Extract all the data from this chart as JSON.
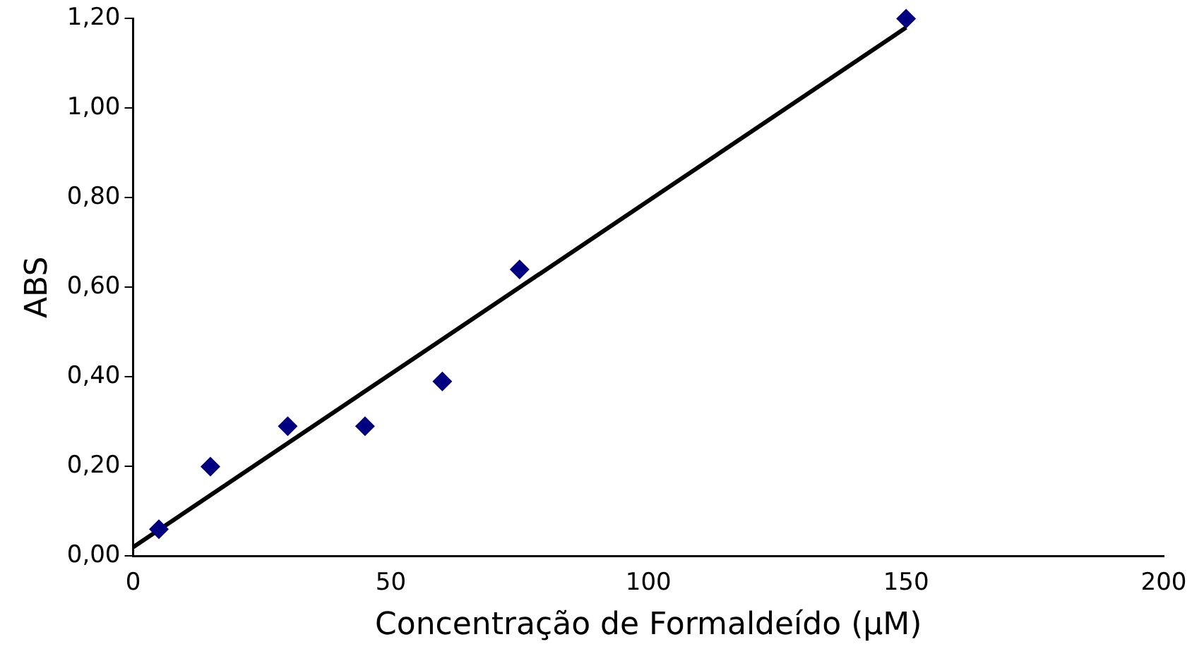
{
  "chart_data": {
    "type": "scatter",
    "xlabel": "Concentração de Formaldeído (µM)",
    "ylabel": "ABS",
    "x": [
      5,
      15,
      30,
      45,
      60,
      75,
      150
    ],
    "series": [
      {
        "type": "scatter",
        "color": "#000080",
        "marker": "diamond",
        "values": [
          0.06,
          0.2,
          0.29,
          0.29,
          0.39,
          0.64,
          1.2
        ]
      },
      {
        "type": "line",
        "color": "#000000",
        "marker": "none",
        "x": [
          0,
          150
        ],
        "values": [
          0.02,
          1.18
        ]
      }
    ],
    "xlim": [
      0,
      200
    ],
    "xticks": [
      0,
      50,
      100,
      150,
      200
    ],
    "ylim": [
      0,
      1.2
    ],
    "yticks": [
      {
        "value": 0,
        "label": "0,00"
      },
      {
        "value": 0.2,
        "label": "0,20"
      },
      {
        "value": 0.4,
        "label": "0,40"
      },
      {
        "value": 0.6,
        "label": "0,60"
      },
      {
        "value": 0.8,
        "label": "0,80"
      },
      {
        "value": 1,
        "label": "1,00"
      },
      {
        "value": 1.2,
        "label": "1,20"
      }
    ],
    "grid": false,
    "legend": false
  }
}
